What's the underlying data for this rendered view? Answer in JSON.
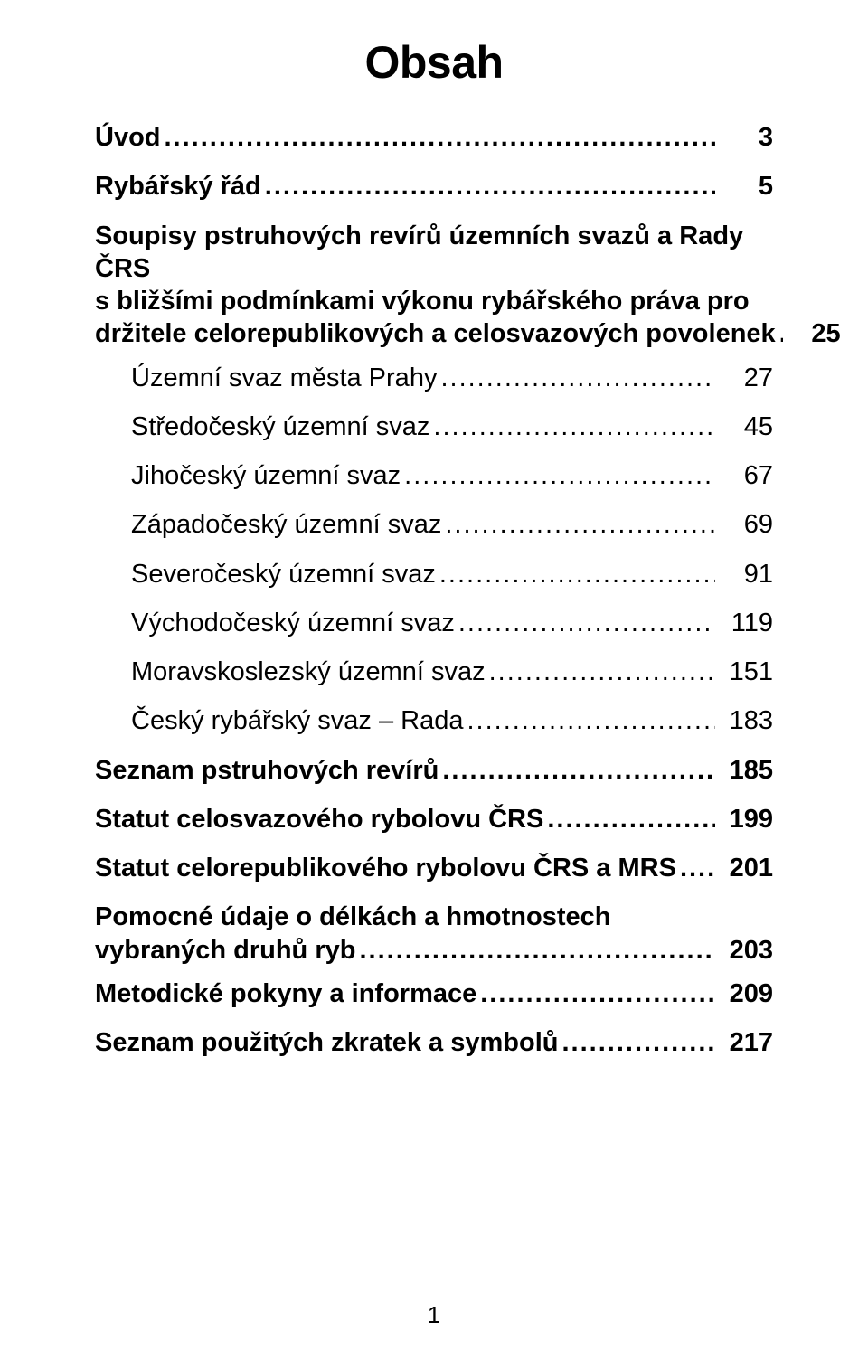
{
  "title": "Obsah",
  "page_number": "1",
  "colors": {
    "background": "#ffffff",
    "text": "#000000"
  },
  "typography": {
    "title_fontsize_pt": 38,
    "entry_fontsize_pt": 22,
    "font_family": "Arial"
  },
  "entries": [
    {
      "label": "Úvod",
      "page": "3",
      "level": 0,
      "bold": true
    },
    {
      "label": "Rybářský řád",
      "page": "5",
      "level": 0,
      "bold": true
    },
    {
      "label_lines": [
        "Soupisy pstruhových revírů územních svazů a Rady ČRS",
        "s bližšími podmínkami výkonu rybářského práva pro",
        "držitele celorepublikových a celosvazových povolenek"
      ],
      "page": "25",
      "level": 0,
      "bold": true,
      "multiline": true,
      "last_leader": " .."
    },
    {
      "label": "Územní svaz města Prahy",
      "page": "27",
      "level": 1,
      "bold": false
    },
    {
      "label": "Středočeský územní svaz",
      "page": "45",
      "level": 1,
      "bold": false
    },
    {
      "label": "Jihočeský územní svaz",
      "page": "67",
      "level": 1,
      "bold": false
    },
    {
      "label": "Západočeský územní svaz",
      "page": "69",
      "level": 1,
      "bold": false
    },
    {
      "label": "Severočeský územní svaz",
      "page": "91",
      "level": 1,
      "bold": false
    },
    {
      "label": "Východočeský územní svaz",
      "page": "119",
      "level": 1,
      "bold": false
    },
    {
      "label": "Moravskoslezský územní svaz",
      "page": "151",
      "level": 1,
      "bold": false
    },
    {
      "label": "Český rybářský svaz – Rada",
      "page": "183",
      "level": 1,
      "bold": false
    },
    {
      "label": "Seznam pstruhových revírů",
      "page": "185",
      "level": 0,
      "bold": true
    },
    {
      "label": "Statut celosvazového rybolovu ČRS",
      "page": "199",
      "level": 0,
      "bold": true
    },
    {
      "label": "Statut celorepublikového rybolovu ČRS a MRS",
      "page": "201",
      "level": 0,
      "bold": true
    },
    {
      "label_lines": [
        "Pomocné údaje o délkách a hmotnostech",
        "vybraných druhů ryb"
      ],
      "page": "203",
      "level": 0,
      "bold": true,
      "multiline": true
    },
    {
      "label": "Metodické pokyny a informace",
      "page": "209",
      "level": 0,
      "bold": true
    },
    {
      "label": "Seznam použitých zkratek a symbolů",
      "page": "217",
      "level": 0,
      "bold": true
    }
  ]
}
